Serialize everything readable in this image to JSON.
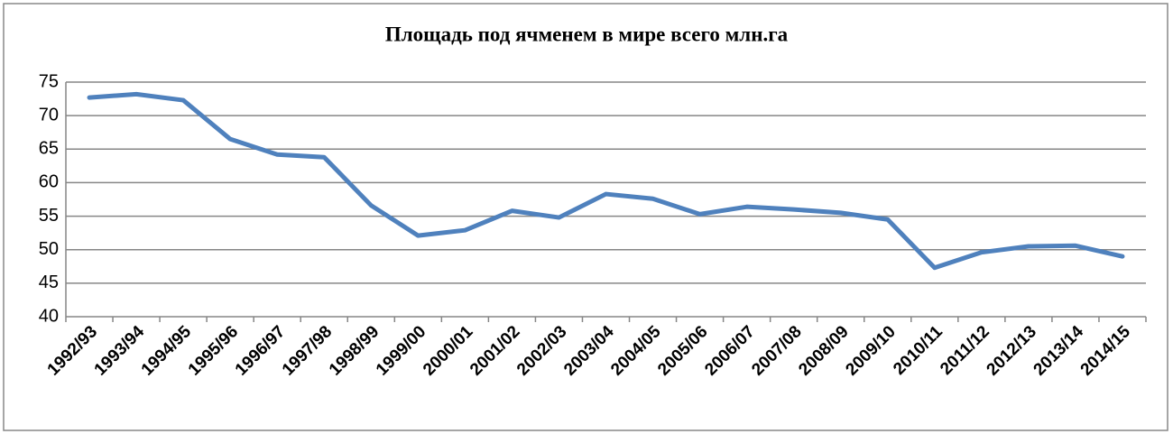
{
  "chart_data": {
    "type": "line",
    "title": "Площадь под ячменем в мире всего млн.га",
    "categories": [
      "1992/93",
      "1993/94",
      "1994/95",
      "1995/96",
      "1996/97",
      "1997/98",
      "1998/99",
      "1999/00",
      "2000/01",
      "2001/02",
      "2002/03",
      "2003/04",
      "2004/05",
      "2005/06",
      "2006/07",
      "2007/08",
      "2008/09",
      "2009/10",
      "2010/11",
      "2011/12",
      "2012/13",
      "2013/14",
      "2014/15"
    ],
    "values": [
      72.7,
      73.2,
      72.3,
      66.5,
      64.2,
      63.8,
      56.6,
      52.1,
      52.9,
      55.8,
      54.8,
      58.3,
      57.6,
      55.3,
      56.4,
      56.0,
      55.5,
      54.5,
      47.3,
      49.6,
      50.5,
      50.6,
      49.0
    ],
    "color": "#4f81bd",
    "ylim": [
      40,
      75
    ],
    "yticks": [
      40,
      45,
      50,
      55,
      60,
      65,
      70,
      75
    ],
    "grid": true
  }
}
